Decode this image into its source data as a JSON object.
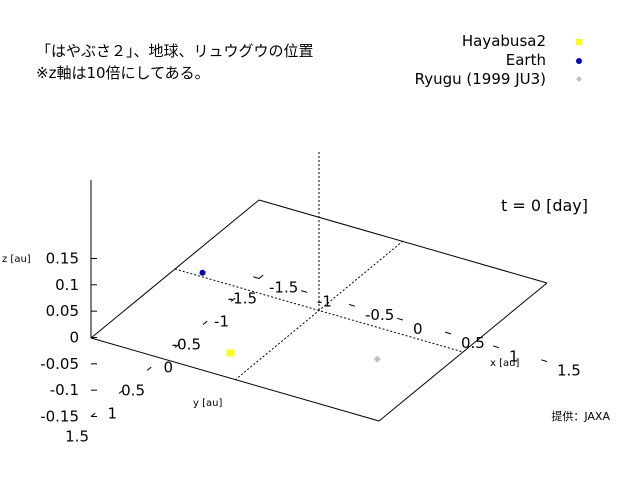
{
  "notes": {
    "line1": "「はやぶさ２」、地球、リュウグウの位置",
    "line2": "※z軸は10倍にしてある。"
  },
  "time_label": "t = 0 [day]",
  "credit": "提供：JAXA",
  "colors": {
    "hayabusa2": "#ffff00",
    "earth": "#0000cc",
    "ryugu": "#bfbfbf"
  },
  "chart_data": {
    "type": "scatter",
    "projection": "3d",
    "title": "",
    "xlabel": "x [au]",
    "ylabel": "y [au]",
    "zlabel": "z [au]",
    "xlim": [
      -1.5,
      1.5
    ],
    "ylim": [
      -1.5,
      1.5
    ],
    "zlim": [
      -0.15,
      0.15
    ],
    "x_ticks": [
      "-1.5",
      "-1",
      "-0.5",
      "0",
      "0.5",
      "1",
      "1.5"
    ],
    "y_ticks": [
      "-1.5",
      "-1",
      "-0.5",
      "0",
      "0.5",
      "1",
      "1.5"
    ],
    "z_ticks": [
      "-0.15",
      "-0.1",
      "-0.05",
      "0",
      "0.05",
      "0.1",
      "0.15"
    ],
    "legend_position": "top-right",
    "series": [
      {
        "name": "Hayabusa2",
        "marker": "square",
        "points": [
          {
            "x": -0.53,
            "y": 0.68,
            "z": -0.05
          }
        ]
      },
      {
        "name": "Earth",
        "marker": "circle",
        "points": [
          {
            "x": -1.05,
            "y": 0.28,
            "z": 0.04
          }
        ]
      },
      {
        "name": "Ryugu (1999 JU3)",
        "marker": "diamond",
        "points": [
          {
            "x": 0.91,
            "y": 0.52,
            "z": 0.0
          }
        ]
      }
    ]
  }
}
